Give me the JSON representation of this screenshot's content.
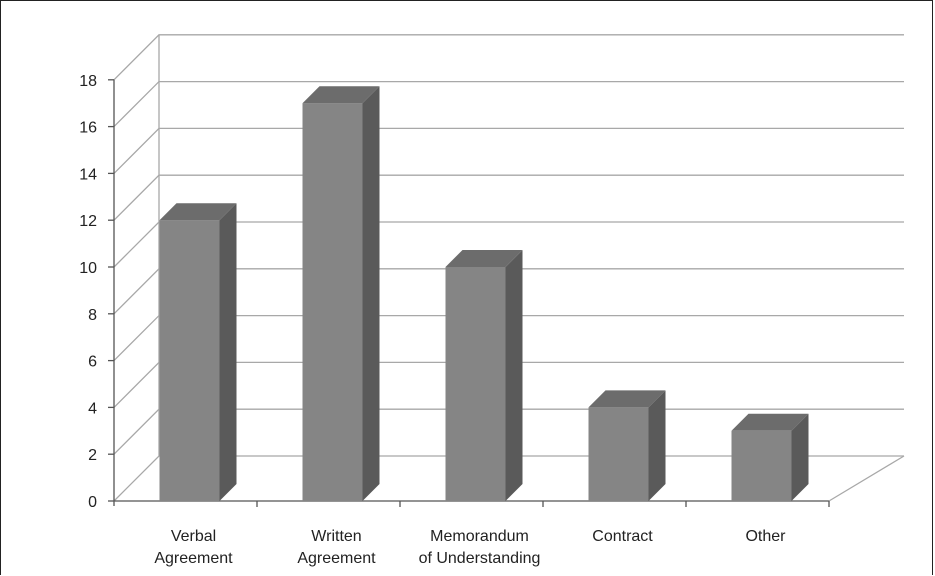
{
  "chart_data": {
    "type": "bar",
    "style": "3d-column",
    "categories": [
      [
        "Verbal",
        "Agreement"
      ],
      [
        "Written",
        "Agreement"
      ],
      [
        "Memorandum",
        "of Understanding"
      ],
      [
        "Contract"
      ],
      [
        "Other"
      ]
    ],
    "values": [
      12,
      17,
      10,
      4,
      3
    ],
    "yticks": [
      0,
      2,
      4,
      6,
      8,
      10,
      12,
      14,
      16,
      18
    ],
    "ylim": [
      0,
      18
    ],
    "grid": true,
    "legend": "none",
    "colors": {
      "bar_front": "#858585",
      "bar_side": "#5a5a5a",
      "bar_top": "#6c6c6c",
      "grid": "#a8a8a8",
      "axis": "#555555",
      "text": "#222222"
    }
  }
}
